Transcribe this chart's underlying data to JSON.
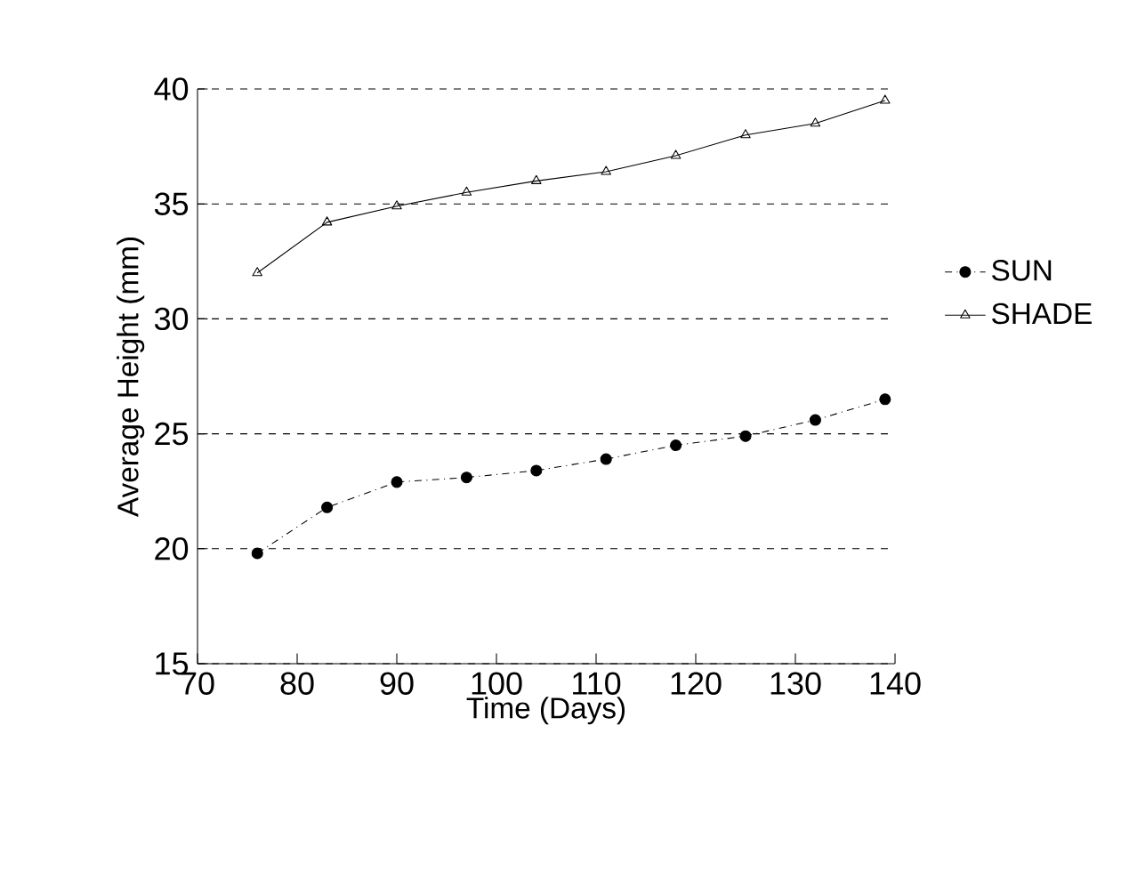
{
  "chart_data": {
    "type": "line",
    "xlabel": "Time (Days)",
    "ylabel": "Average Height (mm)",
    "x": [
      76,
      83,
      90,
      97,
      104,
      111,
      118,
      125,
      132,
      139
    ],
    "series": [
      {
        "name": "SUN",
        "color": "#000000",
        "marker": "circle",
        "line_style": "dotted",
        "values": [
          19.8,
          21.8,
          22.9,
          23.1,
          23.4,
          23.9,
          24.5,
          24.9,
          25.6,
          26.5
        ]
      },
      {
        "name": "SHADE",
        "color": "#000000",
        "marker": "triangle",
        "line_style": "solid",
        "values": [
          32.0,
          34.2,
          34.9,
          35.5,
          36.0,
          36.4,
          37.1,
          38.0,
          38.5,
          39.5
        ]
      }
    ],
    "xlim": [
      70,
      140
    ],
    "xticks": [
      70,
      80,
      90,
      100,
      110,
      120,
      130,
      140
    ],
    "ylim": [
      15,
      40
    ],
    "yticks": [
      15,
      20,
      25,
      30,
      35,
      40
    ],
    "grid": "y",
    "legend": "right"
  }
}
